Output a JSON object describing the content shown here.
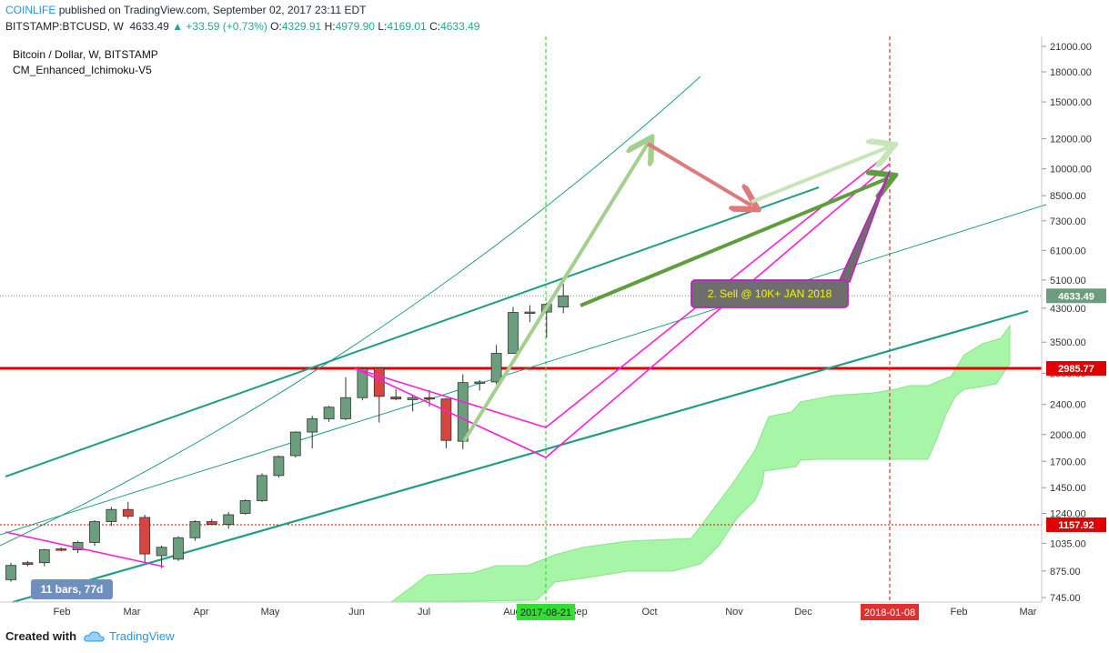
{
  "header": {
    "publisher": "COINLIFE",
    "published_text": "published on TradingView.com, September 02, 2017 23:11 EDT",
    "symbol": "BITSTAMP:BTCUSD, W",
    "price": "4633.49",
    "change": "+33.59 (+0.73%)",
    "o_label": "O:",
    "o_val": "4329.91",
    "h_label": "H:",
    "h_val": "4979.90",
    "l_label": "L:",
    "l_val": "4169.01",
    "c_label": "C:",
    "c_val": "4633.49"
  },
  "legend": {
    "series": "Bitcoin / Dollar, W, BITSTAMP",
    "indicator": "CM_Enhanced_Ichimoku-V5"
  },
  "footer": {
    "created_with": "Created with",
    "brand": "TradingView"
  },
  "colors": {
    "bull": "#6b9e7c",
    "bear": "#d8453e",
    "teal": "#1e9e86",
    "magenta": "#ff1ed8",
    "red_line": "#e00000",
    "cloud": "#9ef59e",
    "arrow_green_light": "#a3cf8f",
    "arrow_green_dark": "#5e9e3d",
    "arrow_red": "#e07a7a"
  },
  "chart_data": {
    "type": "candlestick",
    "scale": "log",
    "y_ticks": [
      21000,
      18000,
      15000,
      12000,
      10000,
      8500,
      7300,
      6100,
      5100,
      4300,
      3500,
      2900,
      2400,
      2000,
      1700,
      1450,
      1240,
      1035,
      875,
      745
    ],
    "y_tick_labels": [
      "21000.00",
      "18000.00",
      "15000.00",
      "12000.00",
      "10000.00",
      "8500.00",
      "7300.00",
      "6100.00",
      "5100.00",
      "4300.00",
      "3500.00",
      "2900.00",
      "2400.00",
      "2000.00",
      "1700.00",
      "1450.00",
      "1240.00",
      "1035.00",
      "875.00",
      "745.00"
    ],
    "x_tick_labels": [
      "Feb",
      "Mar",
      "Apr",
      "May",
      "Jun",
      "Jul",
      "Aug",
      "Sep",
      "Oct",
      "Nov",
      "Dec",
      "Feb",
      "Mar"
    ],
    "price_labels": [
      {
        "value": 4633.49,
        "text": "4633.49",
        "color": "#6b9e7c"
      },
      {
        "value": 2985.77,
        "text": "2985.77",
        "color": "#e00000"
      },
      {
        "value": 1157.92,
        "text": "1157.92",
        "color": "#e00000"
      }
    ],
    "date_markers": [
      {
        "text": "2017-08-21",
        "color": "#33dd33"
      },
      {
        "text": "2018-01-08",
        "color": "#e03030"
      }
    ],
    "candles": [
      {
        "o": 830,
        "h": 920,
        "l": 820,
        "c": 905
      },
      {
        "o": 920,
        "h": 930,
        "l": 900,
        "c": 910
      },
      {
        "o": 920,
        "h": 1000,
        "l": 900,
        "c": 995
      },
      {
        "o": 1000,
        "h": 1010,
        "l": 985,
        "c": 995
      },
      {
        "o": 995,
        "h": 1050,
        "l": 975,
        "c": 1040
      },
      {
        "o": 1040,
        "h": 1190,
        "l": 1020,
        "c": 1180
      },
      {
        "o": 1180,
        "h": 1290,
        "l": 1150,
        "c": 1270
      },
      {
        "o": 1270,
        "h": 1330,
        "l": 1200,
        "c": 1220
      },
      {
        "o": 1210,
        "h": 1230,
        "l": 920,
        "c": 970
      },
      {
        "o": 960,
        "h": 1020,
        "l": 890,
        "c": 1010
      },
      {
        "o": 940,
        "h": 1080,
        "l": 930,
        "c": 1070
      },
      {
        "o": 1070,
        "h": 1190,
        "l": 1050,
        "c": 1180
      },
      {
        "o": 1180,
        "h": 1200,
        "l": 1160,
        "c": 1160
      },
      {
        "o": 1160,
        "h": 1250,
        "l": 1130,
        "c": 1230
      },
      {
        "o": 1240,
        "h": 1350,
        "l": 1230,
        "c": 1340
      },
      {
        "o": 1340,
        "h": 1580,
        "l": 1330,
        "c": 1560
      },
      {
        "o": 1560,
        "h": 1760,
        "l": 1540,
        "c": 1750
      },
      {
        "o": 1760,
        "h": 2040,
        "l": 1740,
        "c": 2030
      },
      {
        "o": 2030,
        "h": 2240,
        "l": 1840,
        "c": 2200
      },
      {
        "o": 2200,
        "h": 2380,
        "l": 2160,
        "c": 2360
      },
      {
        "o": 2200,
        "h": 2830,
        "l": 2180,
        "c": 2500
      },
      {
        "o": 2500,
        "h": 3010,
        "l": 2460,
        "c": 2980
      },
      {
        "o": 2990,
        "h": 2980,
        "l": 2150,
        "c": 2520
      },
      {
        "o": 2510,
        "h": 2630,
        "l": 2460,
        "c": 2480
      },
      {
        "o": 2470,
        "h": 2540,
        "l": 2300,
        "c": 2500
      },
      {
        "o": 2500,
        "h": 2620,
        "l": 2370,
        "c": 2480
      },
      {
        "o": 2480,
        "h": 2490,
        "l": 1840,
        "c": 1930
      },
      {
        "o": 1920,
        "h": 2880,
        "l": 1830,
        "c": 2740
      },
      {
        "o": 2740,
        "h": 2780,
        "l": 2610,
        "c": 2750
      },
      {
        "o": 2750,
        "h": 3440,
        "l": 2710,
        "c": 3270
      },
      {
        "o": 3270,
        "h": 4330,
        "l": 3260,
        "c": 4190
      },
      {
        "o": 4180,
        "h": 4380,
        "l": 3950,
        "c": 4200
      },
      {
        "o": 4200,
        "h": 4450,
        "l": 3600,
        "c": 4400
      },
      {
        "o": 4330,
        "h": 4980,
        "l": 4169,
        "c": 4633
      }
    ],
    "annotation": "2. Sell @ 10K+ JAN 2018",
    "bar_count_label": "11 bars, 77d"
  }
}
